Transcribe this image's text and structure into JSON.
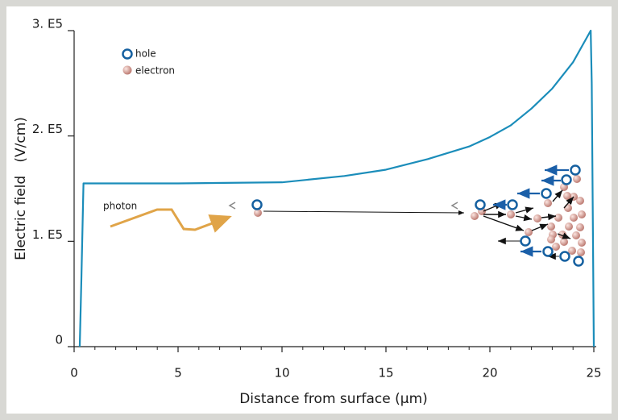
{
  "chart_data": {
    "type": "line",
    "xlabel": "Distance from surface (µm)",
    "ylabel": "Electric field   (V/cm)",
    "x": [
      0.27,
      0.35,
      0.45,
      5,
      10,
      13,
      15,
      17,
      19,
      20,
      21,
      22,
      23,
      24,
      24.85,
      24.9,
      25.0
    ],
    "series": [
      {
        "color": "#1b8dba",
        "values": [
          0,
          65000,
          155000,
          155000,
          156000,
          162000,
          168000,
          178000,
          190000,
          199000,
          210000,
          226000,
          245000,
          270000,
          300000,
          250000,
          0
        ]
      }
    ],
    "xlim": [
      0,
      25
    ],
    "ylim": [
      0,
      300000
    ],
    "xticks": [
      0,
      5,
      10,
      15,
      20,
      25
    ],
    "yticks": [
      0,
      {
        "value": 100000,
        "label": "1. E5"
      },
      {
        "value": 200000,
        "label": "2. E5"
      },
      {
        "value": 300000,
        "label": "3. E5"
      }
    ],
    "legend": [
      "hole",
      "electron"
    ],
    "annotations": [
      "photon"
    ]
  }
}
